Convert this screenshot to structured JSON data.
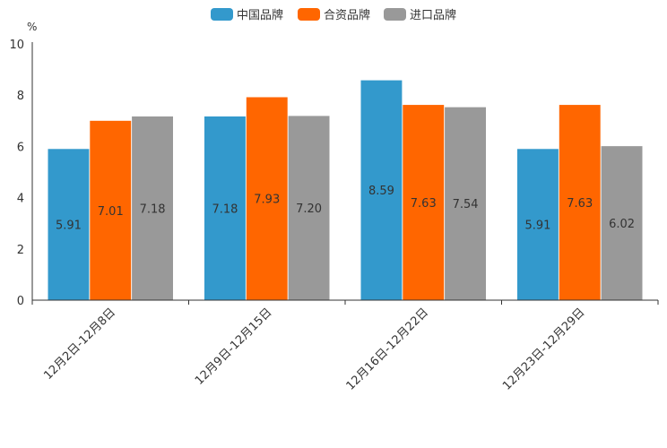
{
  "chart_data": {
    "type": "bar",
    "title": "",
    "ylabel": "%",
    "xlabel": "",
    "ylim": [
      0,
      10
    ],
    "yticks": [
      0,
      2,
      4,
      6,
      8,
      10
    ],
    "grid": false,
    "legend_position": "top-center",
    "categories": [
      "12月2日-12月8日",
      "12月9日-12月15日",
      "12月16日-12月22日",
      "12月23日-12月29日"
    ],
    "series": [
      {
        "name": "中国品牌",
        "color": "#3399cc",
        "values": [
          5.91,
          7.18,
          8.59,
          5.91
        ],
        "labels": [
          "5.91",
          "7.18",
          "8.59",
          "5.91"
        ]
      },
      {
        "name": "合资品牌",
        "color": "#ff6600",
        "values": [
          7.01,
          7.93,
          7.63,
          7.63
        ],
        "labels": [
          "7.01",
          "7.93",
          "7.63",
          "7.63"
        ]
      },
      {
        "name": "进口品牌",
        "color": "#999999",
        "values": [
          7.18,
          7.2,
          7.54,
          6.02
        ],
        "labels": [
          "7.18",
          "7.20",
          "7.54",
          "6.02"
        ]
      }
    ]
  }
}
